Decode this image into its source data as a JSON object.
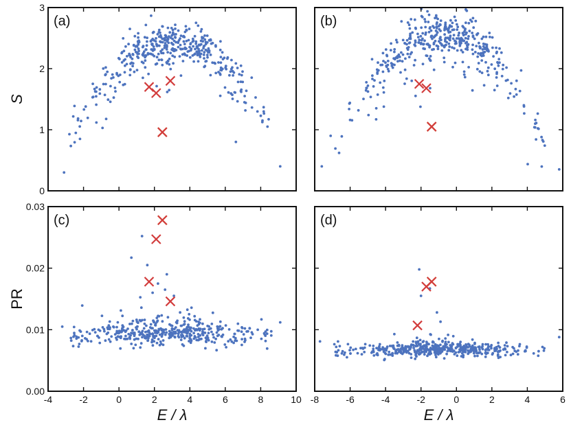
{
  "colors": {
    "scatter": "#4d73be",
    "cross": "#d23c3c",
    "highlight": "#e0a040",
    "axis": "#111111"
  },
  "chart_data": [
    {
      "type": "scatter",
      "panel": "(a)",
      "ylabel": "S",
      "xlabel": "",
      "xlim": [
        -4,
        10
      ],
      "ylim": [
        0,
        3
      ],
      "xticks": [
        -4,
        -2,
        0,
        2,
        4,
        6,
        8,
        10
      ],
      "yticks": [
        "0",
        "1",
        "2",
        "3"
      ],
      "show_xtick_labels": false,
      "cloud": {
        "shape": "arch",
        "center": 3.0,
        "width": 6.2,
        "peak": 2.45,
        "edge": 0.7,
        "spread": 0.16,
        "below_frac": 0.1,
        "x_min": -2.8,
        "x_max": 8.6,
        "noise": 0.25,
        "n": 430,
        "seed": 11
      },
      "extra_points": [
        {
          "x": -3.1,
          "y": 0.3
        },
        {
          "x": 9.1,
          "y": 0.4
        },
        {
          "x": -2.2,
          "y": 0.85
        },
        {
          "x": 8.1,
          "y": 1.15
        },
        {
          "x": 6.6,
          "y": 0.8
        }
      ],
      "crosses": [
        {
          "x": 1.7,
          "y": 1.7
        },
        {
          "x": 2.1,
          "y": 1.6
        },
        {
          "x": 2.9,
          "y": 1.8
        }
      ],
      "highlight_crosses": [
        {
          "x": 2.45,
          "y": 0.96
        }
      ]
    },
    {
      "type": "scatter",
      "panel": "(b)",
      "ylabel": "",
      "xlabel": "",
      "xlim": [
        -8,
        6
      ],
      "ylim": [
        0,
        3
      ],
      "xticks": [
        -8,
        -6,
        -4,
        -2,
        0,
        2,
        4,
        6
      ],
      "yticks": [
        "0",
        "1",
        "2",
        "3"
      ],
      "show_xtick_labels": false,
      "cloud": {
        "shape": "arch",
        "center": -0.8,
        "width": 6.0,
        "peak": 2.6,
        "edge": 0.7,
        "spread": 0.18,
        "below_frac": 0.1,
        "x_min": -7.0,
        "x_max": 5.0,
        "noise": 0.25,
        "n": 430,
        "seed": 23
      },
      "extra_points": [
        {
          "x": -7.6,
          "y": 0.4
        },
        {
          "x": 5.8,
          "y": 0.35
        },
        {
          "x": -7.1,
          "y": 0.9
        },
        {
          "x": 4.8,
          "y": 0.88
        }
      ],
      "crosses": [
        {
          "x": -2.1,
          "y": 1.75
        },
        {
          "x": -1.7,
          "y": 1.68
        }
      ],
      "highlight_crosses": [
        {
          "x": -1.4,
          "y": 1.05
        }
      ]
    },
    {
      "type": "scatter",
      "panel": "(c)",
      "ylabel": "PR",
      "xlabel": "E / λ",
      "xlim": [
        -4,
        10
      ],
      "ylim": [
        0,
        0.03
      ],
      "xticks": [
        -4,
        -2,
        0,
        2,
        4,
        6,
        8,
        10
      ],
      "yticks": [
        "0.00",
        "0.01",
        "0.02",
        "0.03"
      ],
      "show_xtick_labels": true,
      "cloud": {
        "shape": "band",
        "center": 3.0,
        "width": 6.0,
        "base": 0.0088,
        "spread": 0.0009,
        "rise": 0.0016,
        "up_frac": 0.12,
        "up_spread": 0.0022,
        "x_min": -2.8,
        "x_max": 8.6,
        "noise": 0.0,
        "n": 430,
        "seed": 37
      },
      "extra_points": [
        {
          "x": -3.2,
          "y": 0.0105
        },
        {
          "x": 9.1,
          "y": 0.0112
        },
        {
          "x": 1.3,
          "y": 0.0252
        },
        {
          "x": 0.7,
          "y": 0.0217
        },
        {
          "x": 1.6,
          "y": 0.0205
        },
        {
          "x": 2.7,
          "y": 0.019
        },
        {
          "x": 2.2,
          "y": 0.0175
        },
        {
          "x": 1.9,
          "y": 0.016
        },
        {
          "x": 2.6,
          "y": 0.0165
        },
        {
          "x": 3.1,
          "y": 0.0155
        },
        {
          "x": 2.3,
          "y": 0.0075
        }
      ],
      "crosses": [
        {
          "x": 2.1,
          "y": 0.0247
        },
        {
          "x": 1.7,
          "y": 0.0178
        },
        {
          "x": 2.9,
          "y": 0.0146
        }
      ],
      "highlight_crosses": [
        {
          "x": 2.45,
          "y": 0.0278
        }
      ]
    },
    {
      "type": "scatter",
      "panel": "(d)",
      "ylabel": "",
      "xlabel": "E / λ",
      "xlim": [
        -8,
        6
      ],
      "ylim": [
        0,
        0.03
      ],
      "xticks": [
        -8,
        -6,
        -4,
        -2,
        0,
        2,
        4,
        6
      ],
      "yticks": [
        "0.00",
        "0.01",
        "0.02",
        "0.03"
      ],
      "show_xtick_labels": true,
      "cloud": {
        "shape": "band",
        "center": -0.8,
        "width": 6.0,
        "base": 0.0065,
        "spread": 0.0006,
        "rise": 0.0008,
        "up_frac": 0.07,
        "up_spread": 0.0014,
        "x_min": -7.0,
        "x_max": 5.0,
        "noise": 0.0,
        "n": 450,
        "seed": 53
      },
      "extra_points": [
        {
          "x": -7.7,
          "y": 0.0081
        },
        {
          "x": 5.8,
          "y": 0.0088
        },
        {
          "x": -2.1,
          "y": 0.0198
        },
        {
          "x": -1.5,
          "y": 0.0167
        },
        {
          "x": -2.0,
          "y": 0.0155
        },
        {
          "x": -1.1,
          "y": 0.0128
        },
        {
          "x": -0.9,
          "y": 0.0113
        }
      ],
      "crosses": [
        {
          "x": -1.7,
          "y": 0.017
        },
        {
          "x": -2.2,
          "y": 0.0107
        }
      ],
      "highlight_crosses": [
        {
          "x": -1.4,
          "y": 0.0178
        }
      ]
    }
  ]
}
